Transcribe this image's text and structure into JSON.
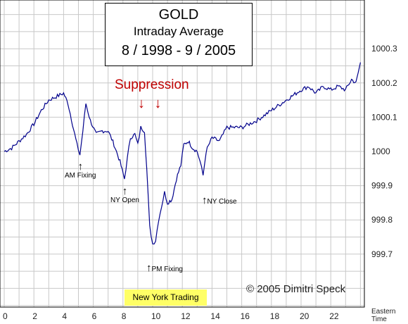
{
  "title": {
    "line1": "GOLD",
    "line2": "Intraday Average",
    "line3": "8 / 1998 - 9 / 2005"
  },
  "annotation_suppression": "Suppression",
  "suppression_arrows": "↓ ↓",
  "annotations": {
    "am_fixing": "AM Fixing",
    "ny_open": "NY Open",
    "pm_fixing": "PM Fixing",
    "ny_close": "NY Close"
  },
  "ny_trading_label": "New York Trading",
  "copyright": "© 2005 Dimitri Speck",
  "colors": {
    "line": "#00008b",
    "grid": "#c8c8c8",
    "suppression": "#c00000",
    "highlight": "#ffff66"
  },
  "chart_data": {
    "type": "line",
    "xlabel": "Eastern Time",
    "xlim": [
      0,
      24
    ],
    "ylim": [
      999.6,
      1000.35
    ],
    "x_ticks": [
      0,
      2,
      4,
      6,
      8,
      10,
      12,
      14,
      16,
      18,
      20,
      22
    ],
    "y_ticks": [
      "1000.3",
      "1000.2",
      "1000.1",
      "1000",
      "999.9",
      "999.8",
      "999.7"
    ],
    "y_tick_values": [
      1000.3,
      1000.2,
      1000.1,
      1000.0,
      999.9,
      999.8,
      999.7
    ],
    "grid": true,
    "series": [
      {
        "x": [
          0,
          0.5,
          1,
          1.5,
          2,
          2.5,
          3,
          3.5,
          4,
          4.3,
          4.6,
          4.9,
          5.1,
          5.3,
          5.5,
          5.8,
          6.2,
          6.6,
          7,
          7.4,
          7.8,
          8.1,
          8.3,
          8.5,
          8.8,
          9,
          9.2,
          9.45,
          9.6,
          9.8,
          10,
          10.2,
          10.4,
          10.6,
          10.8,
          11,
          11.3,
          11.6,
          11.9,
          12.1,
          12.4,
          12.7,
          13,
          13.2,
          13.4,
          13.6,
          14,
          14.5,
          15,
          16,
          17,
          18,
          19,
          20,
          20.5,
          21,
          21.5,
          22,
          22.5,
          23,
          23.4,
          23.7,
          24
        ],
        "y": [
          1000.0,
          1000.01,
          1000.03,
          1000.05,
          1000.08,
          1000.12,
          1000.15,
          1000.16,
          1000.17,
          1000.14,
          1000.08,
          1000.02,
          999.99,
          1000.06,
          1000.14,
          1000.09,
          1000.05,
          1000.06,
          1000.06,
          1000.02,
          999.97,
          999.92,
          999.98,
          1000.04,
          1000.05,
          1000.02,
          1000.07,
          1000.06,
          999.95,
          999.78,
          999.73,
          999.74,
          999.8,
          999.84,
          999.88,
          999.85,
          999.86,
          999.92,
          999.96,
          1000.02,
          1000.03,
          1000.01,
          1000.0,
          999.97,
          999.93,
          1000.0,
          1000.04,
          1000.03,
          1000.07,
          1000.07,
          1000.09,
          1000.12,
          1000.15,
          1000.18,
          1000.19,
          1000.17,
          1000.19,
          1000.18,
          1000.19,
          1000.18,
          1000.21,
          1000.2,
          1000.26
        ]
      }
    ]
  }
}
